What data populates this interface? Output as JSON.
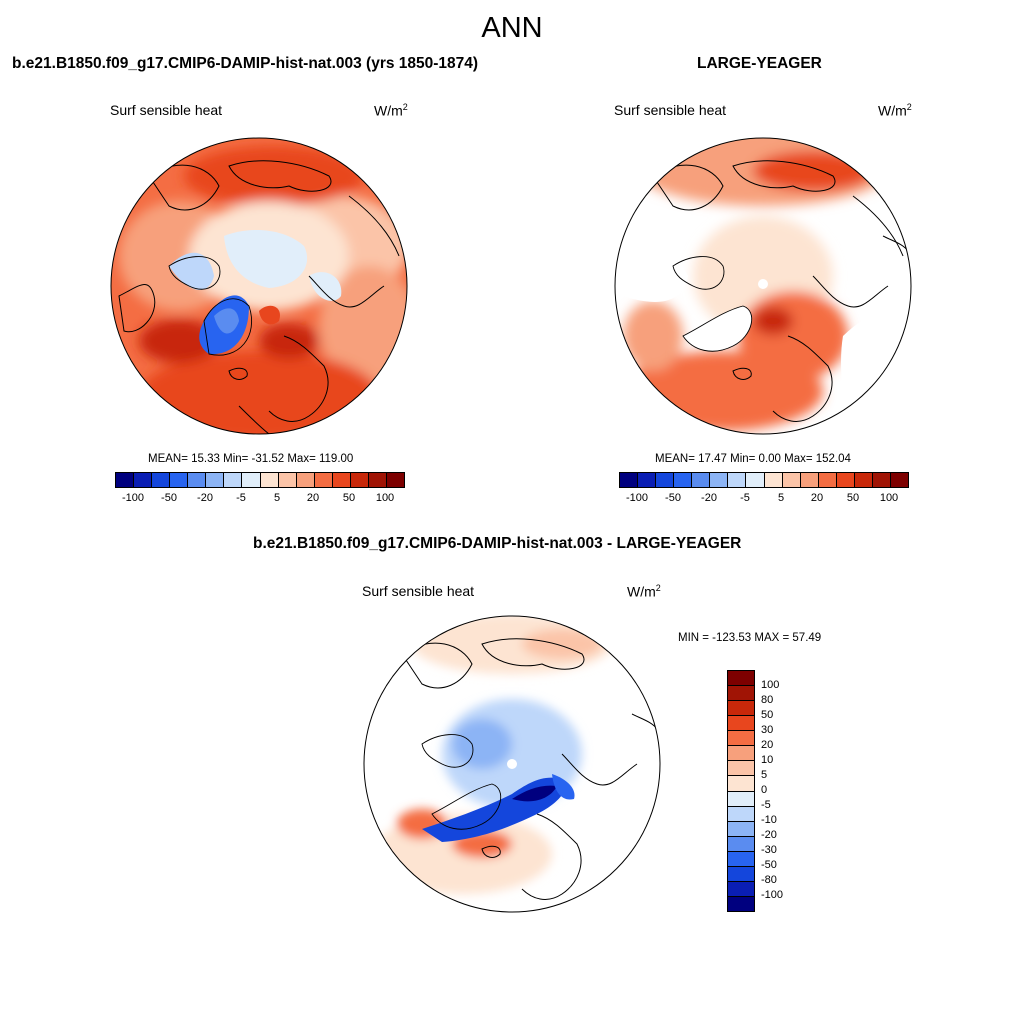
{
  "title": "ANN",
  "colors": {
    "scale": [
      "#00007f",
      "#0a1eb4",
      "#1446dc",
      "#2864f0",
      "#5a8cf0",
      "#8cb4f5",
      "#bed7fa",
      "#e1eefa",
      "#fde4d2",
      "#fbc4a8",
      "#f7a07c",
      "#f46d43",
      "#e8461e",
      "#c8280a",
      "#a01405",
      "#7d0000"
    ],
    "diff_scale": [
      "#7d0000",
      "#a01405",
      "#c8280a",
      "#e8461e",
      "#f46d43",
      "#f7a07c",
      "#fbc4a8",
      "#fde4d2",
      "#e1eefa",
      "#bed7fa",
      "#8cb4f5",
      "#5a8cf0",
      "#2864f0",
      "#1446dc",
      "#0a1eb4",
      "#00007f"
    ]
  },
  "panels": {
    "top_left": {
      "title": "b.e21.B1850.f09_g17.CMIP6-DAMIP-hist-nat.003 (yrs 1850-1874)",
      "variable": "Surf sensible heat",
      "unit_base": "W/m",
      "unit_exp": "2",
      "stats": "MEAN=  15.33  Min= -31.52  Max= 119.00"
    },
    "top_right": {
      "title": "LARGE-YEAGER",
      "variable": "Surf sensible heat",
      "unit_base": "W/m",
      "unit_exp": "2",
      "stats": "MEAN=  17.47  Min=   0.00  Max= 152.04"
    },
    "bottom": {
      "title": "b.e21.B1850.f09_g17.CMIP6-DAMIP-hist-nat.003 - LARGE-YEAGER",
      "variable": "Surf sensible heat",
      "unit_base": "W/m",
      "unit_exp": "2",
      "stats": "MIN = -123.53 MAX =  57.49"
    }
  },
  "chart_data": [
    {
      "type": "heatmap",
      "title": "b.e21.B1850.f09_g17.CMIP6-DAMIP-hist-nat.003 (yrs 1850-1874)",
      "subtitle": "Surf sensible heat",
      "units": "W/m2",
      "projection": "north polar stereographic",
      "mean": 15.33,
      "min": -31.52,
      "max": 119.0,
      "colorbar_ticks": [
        "-100",
        "-50",
        "-20",
        "-5",
        "5",
        "20",
        "50",
        "100"
      ],
      "colorbar_orientation": "horizontal"
    },
    {
      "type": "heatmap",
      "title": "LARGE-YEAGER",
      "subtitle": "Surf sensible heat",
      "units": "W/m2",
      "projection": "north polar stereographic",
      "mean": 17.47,
      "min": 0.0,
      "max": 152.04,
      "colorbar_ticks": [
        "-100",
        "-50",
        "-20",
        "-5",
        "5",
        "20",
        "50",
        "100"
      ],
      "colorbar_orientation": "horizontal"
    },
    {
      "type": "heatmap",
      "title": "b.e21.B1850.f09_g17.CMIP6-DAMIP-hist-nat.003 - LARGE-YEAGER",
      "subtitle": "Surf sensible heat",
      "units": "W/m2",
      "projection": "north polar stereographic",
      "min": -123.53,
      "max": 57.49,
      "colorbar_ticks": [
        "100",
        "80",
        "50",
        "30",
        "20",
        "10",
        "5",
        "0",
        "-5",
        "-10",
        "-20",
        "-30",
        "-50",
        "-80",
        "-100"
      ],
      "colorbar_orientation": "vertical"
    }
  ]
}
